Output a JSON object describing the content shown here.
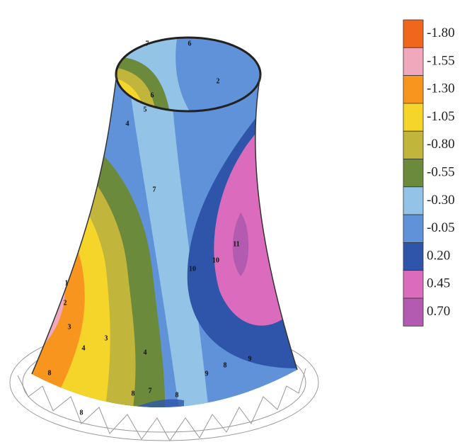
{
  "chart_data": {
    "type": "contour",
    "colorbar": {
      "values": [
        -1.8,
        -1.55,
        -1.3,
        -1.05,
        -0.8,
        -0.55,
        -0.3,
        -0.05,
        0.2,
        0.45,
        0.7
      ],
      "value_labels": [
        "-1.80",
        "-1.55",
        "-1.30",
        "-1.05",
        "-0.80",
        "-0.55",
        "-0.30",
        "-0.05",
        "0.20",
        "0.45",
        "0.70"
      ],
      "colors": [
        "#f0661c",
        "#f0a8bd",
        "#f7951f",
        "#f6d52a",
        "#c2b53c",
        "#6b8a3b",
        "#93c3e6",
        "#5f92d8",
        "#2f55aa",
        "#db6cbd",
        "#b25bb0"
      ]
    },
    "contour_labels": [
      7,
      6,
      6,
      5,
      4,
      2,
      7,
      1,
      2,
      3,
      4,
      3,
      4,
      11,
      10,
      10,
      9,
      8,
      9,
      8,
      8,
      8,
      7,
      8
    ]
  }
}
